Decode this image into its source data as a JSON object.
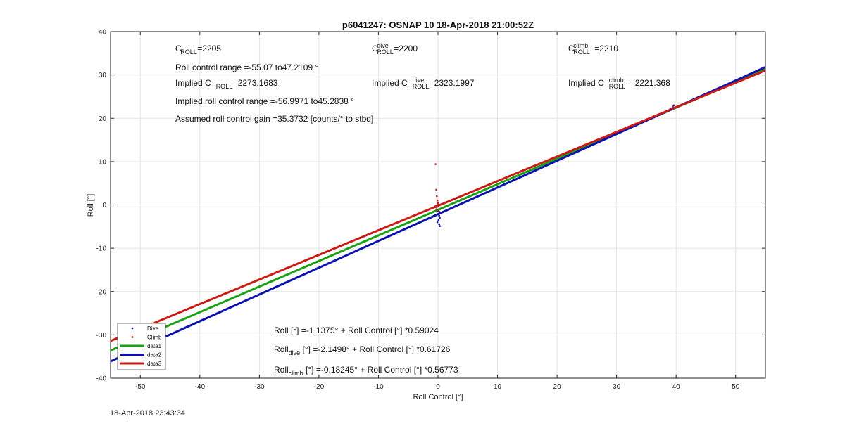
{
  "footer": {
    "timestamp": "18-Apr-2018 23:43:34"
  },
  "chart_data": {
    "type": "line",
    "title": "p6041247: OSNAP 10 18-Apr-2018 21:00:52Z",
    "xlabel": "Roll Control [°]",
    "ylabel": "Roll [°]",
    "xlim": [
      -55,
      55
    ],
    "ylim": [
      -40,
      40
    ],
    "xticks": [
      -50,
      -40,
      -30,
      -20,
      -10,
      0,
      10,
      20,
      30,
      40,
      50
    ],
    "yticks": [
      -40,
      -30,
      -20,
      -10,
      0,
      10,
      20,
      30,
      40
    ],
    "grid": true,
    "colors": {
      "dive": "#0b12b0",
      "climb": "#cc1a14",
      "fit_all": "#1aa114",
      "fit_dive": "#0b12b0",
      "fit_climb": "#cc1a14"
    },
    "series": [
      {
        "name": "Dive",
        "kind": "points",
        "color": "#0b12b0",
        "x": [
          -0.3,
          -0.2,
          0.0,
          0.1,
          0.2,
          0.3,
          0.1,
          -0.1,
          0.2,
          0.3,
          39.2,
          39.4,
          39.6
        ],
        "y": [
          -0.5,
          -1.0,
          -1.5,
          -2.0,
          -2.5,
          -3.0,
          -3.5,
          -4.0,
          -4.5,
          -4.9,
          22.0,
          22.5,
          23.0
        ]
      },
      {
        "name": "Climb",
        "kind": "points",
        "color": "#cc1a14",
        "x": [
          -0.4,
          -0.3,
          -0.2,
          -0.1,
          0.0,
          0.1,
          -0.2,
          -0.3,
          0.0,
          -0.4,
          0.2,
          39.0,
          39.5
        ],
        "y": [
          9.4,
          3.5,
          2.0,
          1.0,
          0.5,
          0.0,
          -0.5,
          -1.0,
          0.3,
          -0.2,
          -1.5,
          22.3,
          22.7
        ]
      },
      {
        "name": "data1",
        "kind": "line",
        "color": "#1aa114",
        "intercept": -1.1375,
        "slope": 0.59024
      },
      {
        "name": "data2",
        "kind": "line",
        "color": "#0b12b0",
        "intercept": -2.1498,
        "slope": 0.61726
      },
      {
        "name": "data3",
        "kind": "line",
        "color": "#cc1a14",
        "intercept": -0.18245,
        "slope": 0.56773
      }
    ],
    "annotations": {
      "c_roll": {
        "base": "C",
        "sub": "ROLL",
        "value": "=2205"
      },
      "roll_range": "Roll control range =-55.07 to47.2109 °",
      "implied_c_roll": {
        "prefix": "Implied C",
        "sub": "ROLL",
        "value": " =2273.1683"
      },
      "implied_range": "Implied roll control range =-56.9971 to45.2838 °",
      "gain": "Assumed roll control gain =35.3732 [counts/° to stbd]",
      "c_dive": {
        "base": "C",
        "sup": "dive",
        "sub": "ROLL",
        "value": " =2200"
      },
      "implied_c_dive": {
        "prefix": "Implied C",
        "sup": "dive",
        "sub": "ROLL",
        "value": " =2323.1997"
      },
      "c_climb": {
        "base": "C",
        "sup": "climb",
        "sub": "ROLL",
        "value": " =2210"
      },
      "implied_c_climb": {
        "prefix": "Implied C",
        "sup": "climb",
        "sub": "ROLL",
        "value": " =2221.368"
      },
      "eq_all": {
        "base": "Roll",
        "sub": "",
        "rest": " [°] =-1.1375° + Roll Control [°] *0.59024"
      },
      "eq_dive": {
        "base": "Roll",
        "sub": "dive",
        "rest": " [°] =-2.1498° + Roll Control [°] *0.61726"
      },
      "eq_climb": {
        "base": "Roll",
        "sub": "climb",
        "rest": " [°] =-0.18245° + Roll Control [°] *0.56773"
      }
    }
  }
}
